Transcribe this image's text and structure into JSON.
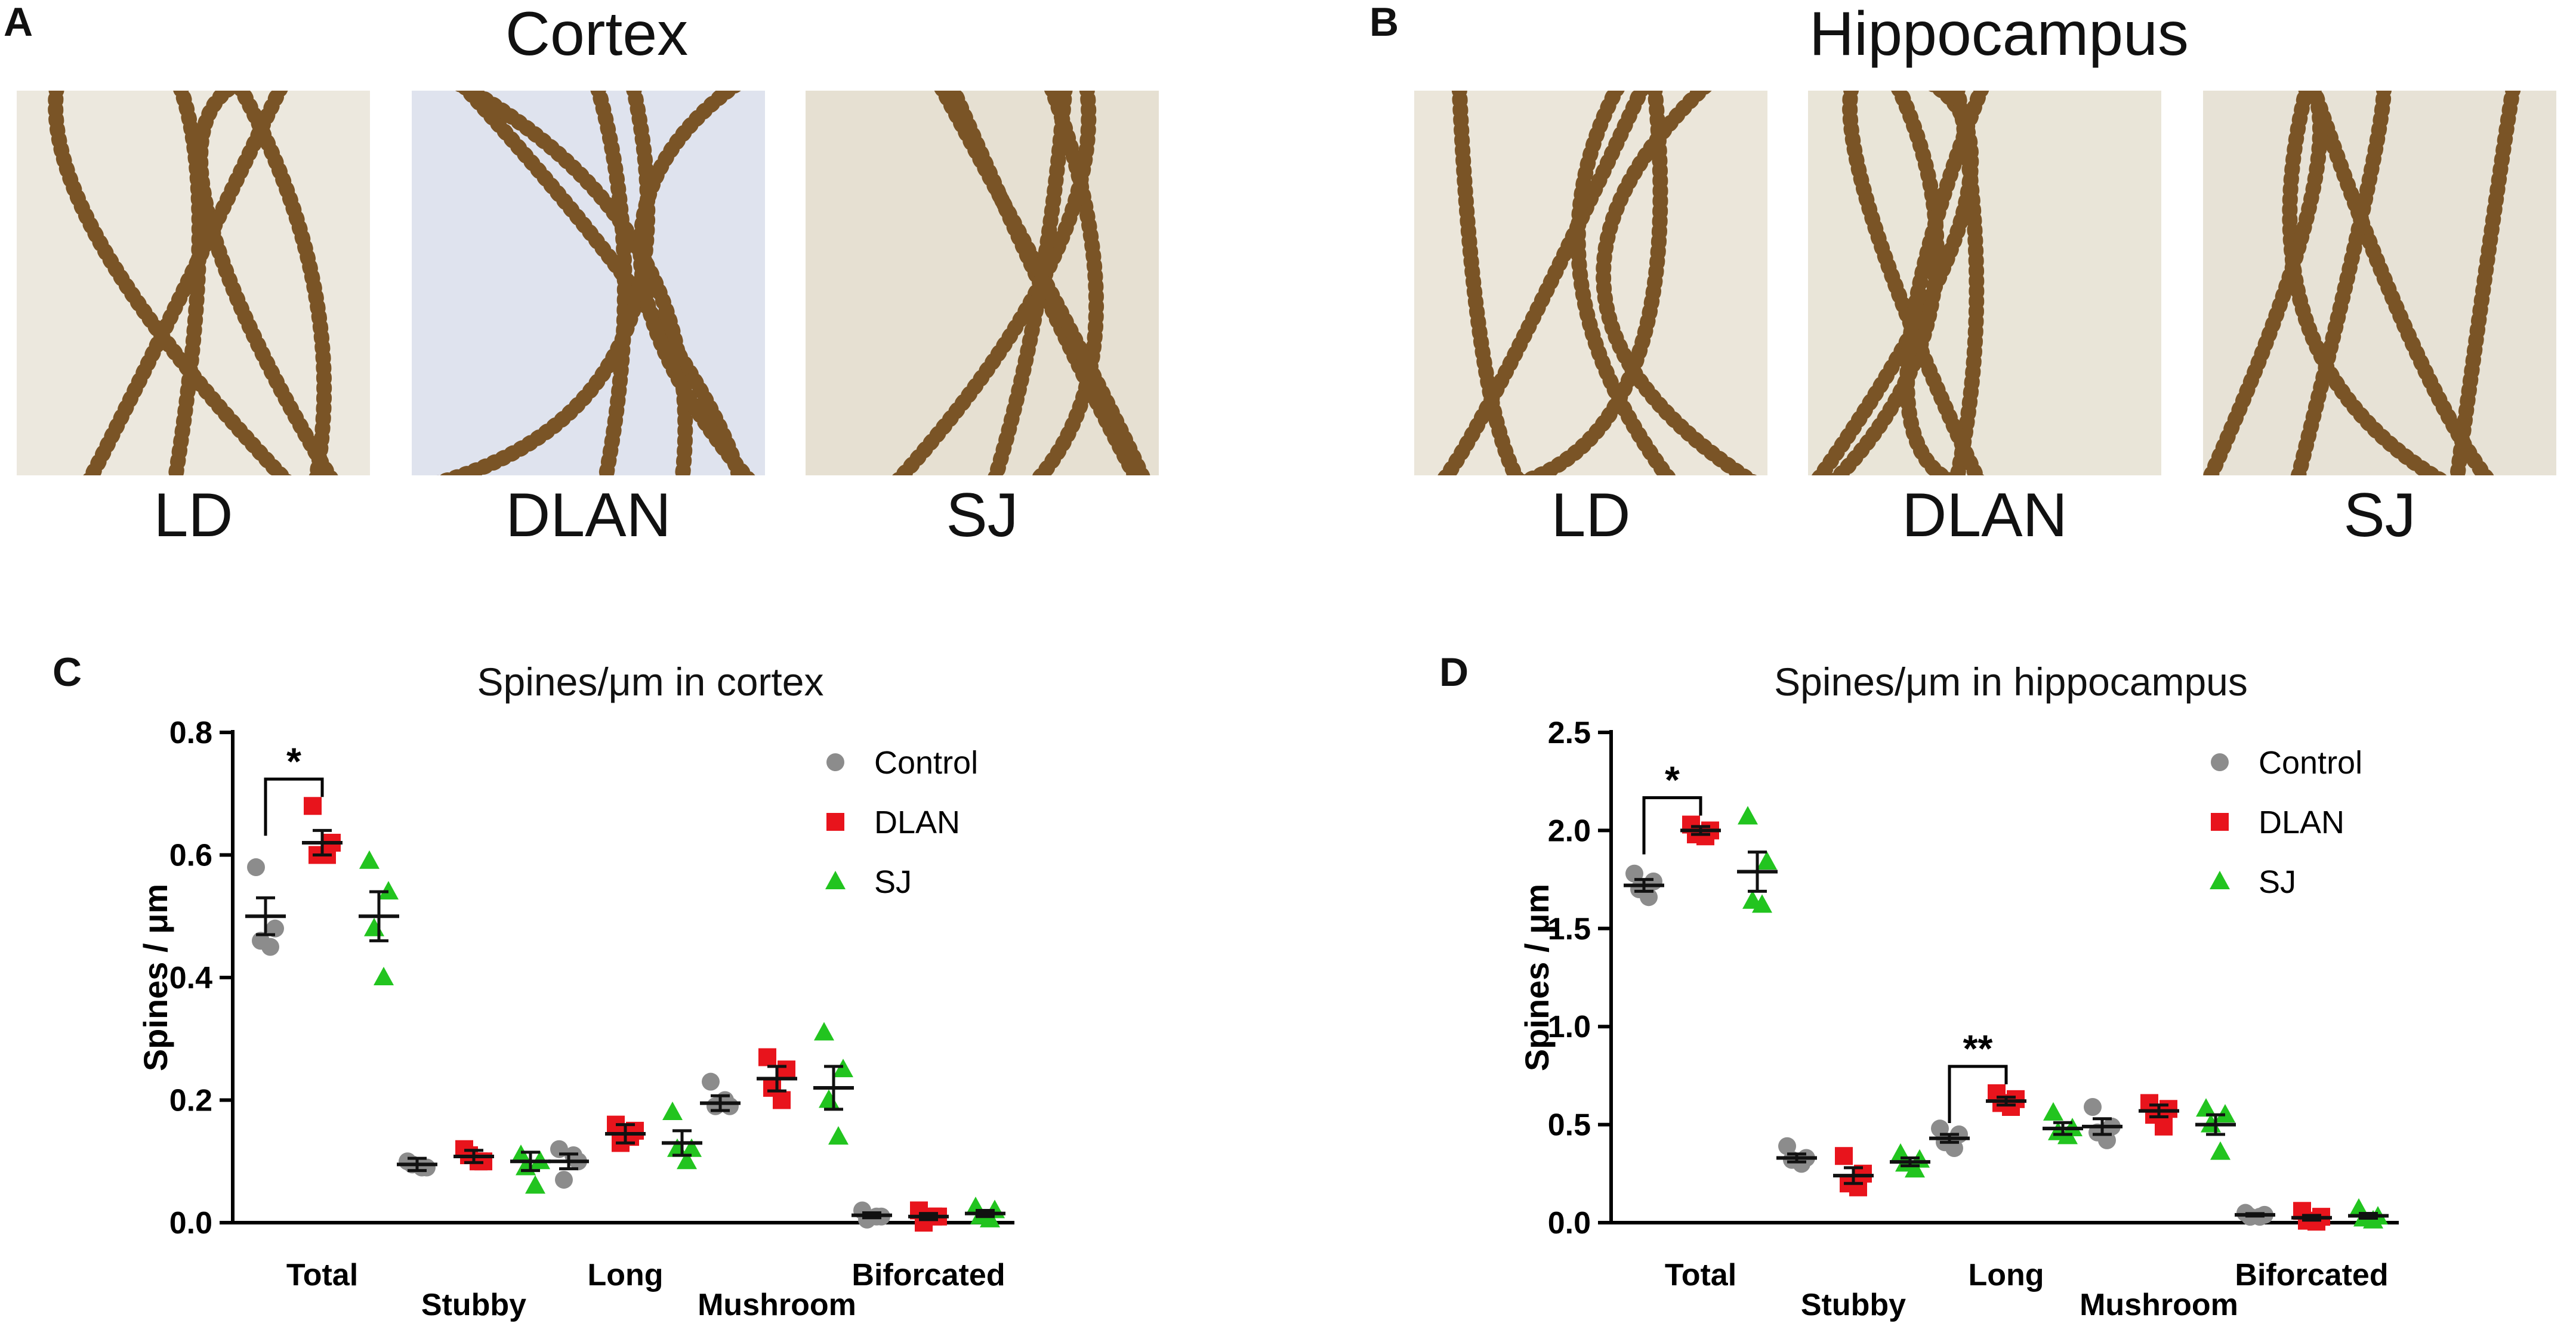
{
  "panels": {
    "A": {
      "letter": "A",
      "title": "Cortex",
      "images": [
        {
          "label": "LD",
          "tint": "#ece8de"
        },
        {
          "label": "DLAN",
          "tint": "#dfe3ee"
        },
        {
          "label": "SJ",
          "tint": "#e6e0d2"
        }
      ]
    },
    "B": {
      "letter": "B",
      "title": "Hippocampus",
      "images": [
        {
          "label": "LD",
          "tint": "#ebe6da"
        },
        {
          "label": "DLAN",
          "tint": "#e9e5d8"
        },
        {
          "label": "SJ",
          "tint": "#e7e2d6"
        }
      ]
    },
    "C": {
      "letter": "C"
    },
    "D": {
      "letter": "D"
    }
  },
  "colors": {
    "control": "#8c8c8c",
    "dlan": "#e8141c",
    "sj": "#22c41f",
    "mean": "#111111"
  },
  "chart_data": [
    {
      "type": "scatter",
      "title": "Spines/μm in cortex",
      "ylabel": "Spines / μm",
      "ylim": [
        0,
        0.8
      ],
      "yticks": [
        "0.0",
        "0.2",
        "0.4",
        "0.6",
        "0.8"
      ],
      "yticks_values": [
        0,
        0.2,
        0.4,
        0.6,
        0.8
      ],
      "categories": [
        "Total",
        "Stubby",
        "Long",
        "Mushroom",
        "Biforcated"
      ],
      "legend": [
        "Control",
        "DLAN",
        "SJ"
      ],
      "legend_position": "top-right",
      "series": [
        {
          "name": "Control",
          "marker": "circle",
          "points": [
            [
              0.58,
              0.48,
              0.46,
              0.45
            ],
            [
              0.1,
              0.09,
              0.095,
              0.09
            ],
            [
              0.12,
              0.1,
              0.07,
              0.11
            ],
            [
              0.23,
              0.19,
              0.19,
              0.2
            ],
            [
              0.02,
              0.01,
              0.005,
              0.01
            ]
          ],
          "mean": [
            0.5,
            0.095,
            0.1,
            0.195,
            0.012
          ],
          "sem": [
            0.03,
            0.01,
            0.012,
            0.012,
            0.004
          ]
        },
        {
          "name": "DLAN",
          "marker": "square",
          "points": [
            [
              0.68,
              0.62,
              0.6,
              0.6
            ],
            [
              0.12,
              0.1,
              0.11,
              0.1
            ],
            [
              0.16,
              0.15,
              0.13,
              0.14
            ],
            [
              0.27,
              0.25,
              0.22,
              0.2
            ],
            [
              0.02,
              0.01,
              0.0,
              0.01
            ]
          ],
          "mean": [
            0.62,
            0.108,
            0.145,
            0.235,
            0.01
          ],
          "sem": [
            0.02,
            0.01,
            0.015,
            0.02,
            0.005
          ]
        },
        {
          "name": "SJ",
          "marker": "triangle",
          "points": [
            [
              0.59,
              0.54,
              0.48,
              0.4
            ],
            [
              0.11,
              0.1,
              0.09,
              0.06
            ],
            [
              0.18,
              0.12,
              0.12,
              0.1
            ],
            [
              0.31,
              0.25,
              0.2,
              0.14
            ],
            [
              0.025,
              0.02,
              0.01,
              0.005
            ]
          ],
          "mean": [
            0.5,
            0.1,
            0.13,
            0.22,
            0.015
          ],
          "sem": [
            0.04,
            0.015,
            0.02,
            0.035,
            0.005
          ]
        }
      ],
      "significance": [
        {
          "category": "Total",
          "label": "*"
        }
      ]
    },
    {
      "type": "scatter",
      "title": "Spines/μm in hippocampus",
      "ylabel": "Spines / μm",
      "ylim": [
        0,
        2.5
      ],
      "yticks": [
        "0.0",
        "0.5",
        "1.0",
        "1.5",
        "2.0",
        "2.5"
      ],
      "yticks_values": [
        0,
        0.5,
        1.0,
        1.5,
        2.0,
        2.5
      ],
      "categories": [
        "Total",
        "Stubby",
        "Long",
        "Mushroom",
        "Biforcated"
      ],
      "legend": [
        "Control",
        "DLAN",
        "SJ"
      ],
      "legend_position": "top-right",
      "series": [
        {
          "name": "Control",
          "marker": "circle",
          "points": [
            [
              1.78,
              1.74,
              1.7,
              1.66
            ],
            [
              0.39,
              0.33,
              0.32,
              0.3
            ],
            [
              0.48,
              0.45,
              0.41,
              0.38
            ],
            [
              0.59,
              0.49,
              0.46,
              0.42
            ],
            [
              0.05,
              0.04,
              0.03,
              0.03
            ]
          ],
          "mean": [
            1.72,
            0.33,
            0.43,
            0.49,
            0.04
          ],
          "sem": [
            0.03,
            0.02,
            0.02,
            0.04,
            0.006
          ]
        },
        {
          "name": "DLAN",
          "marker": "square",
          "points": [
            [
              2.03,
              2.0,
              1.98,
              1.97
            ],
            [
              0.34,
              0.25,
              0.2,
              0.18
            ],
            [
              0.66,
              0.63,
              0.61,
              0.59
            ],
            [
              0.61,
              0.58,
              0.55,
              0.49
            ],
            [
              0.06,
              0.03,
              0.01,
              0.005
            ]
          ],
          "mean": [
            2.0,
            0.24,
            0.62,
            0.57,
            0.025
          ],
          "sem": [
            0.02,
            0.04,
            0.02,
            0.03,
            0.012
          ]
        },
        {
          "name": "SJ",
          "marker": "triangle",
          "points": [
            [
              2.07,
              1.84,
              1.64,
              1.62
            ],
            [
              0.35,
              0.32,
              0.3,
              0.27
            ],
            [
              0.56,
              0.48,
              0.46,
              0.44
            ],
            [
              0.58,
              0.55,
              0.5,
              0.36
            ],
            [
              0.07,
              0.03,
              0.02,
              0.01
            ]
          ],
          "mean": [
            1.79,
            0.31,
            0.48,
            0.5,
            0.035
          ],
          "sem": [
            0.1,
            0.02,
            0.03,
            0.05,
            0.012
          ]
        }
      ],
      "significance": [
        {
          "category": "Total",
          "label": "*"
        },
        {
          "category": "Long",
          "label": "**"
        }
      ]
    }
  ]
}
